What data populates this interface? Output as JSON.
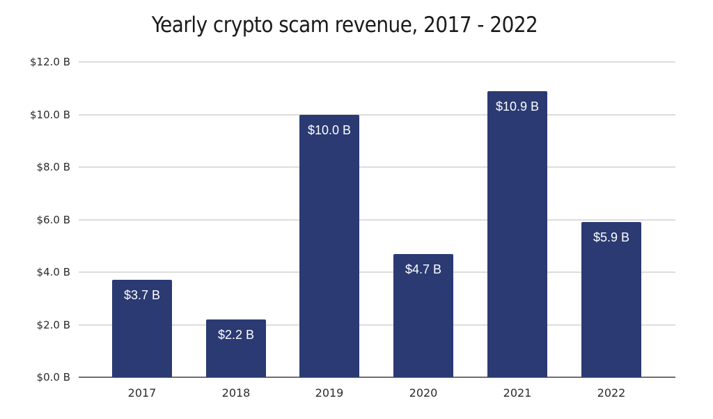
{
  "chart_data": {
    "type": "bar",
    "title": "Yearly crypto scam revenue, 2017 - 2022",
    "xlabel": "",
    "ylabel": "",
    "categories": [
      "2017",
      "2018",
      "2019",
      "2020",
      "2021",
      "2022"
    ],
    "values": [
      3.7,
      2.2,
      10.0,
      4.7,
      10.9,
      5.9
    ],
    "data_labels": [
      "$3.7 B",
      "$2.2 B",
      "$10.0 B",
      "$4.7 B",
      "$10.9 B",
      "$5.9 B"
    ],
    "unit": "USD billions",
    "ylim": [
      0,
      12
    ],
    "yticks": [
      0,
      2,
      4,
      6,
      8,
      10,
      12
    ],
    "ytick_labels": [
      "$0.0 B",
      "$2.0 B",
      "$4.0 B",
      "$6.0 B",
      "$8.0 B",
      "$10.0 B",
      "$12.0 B"
    ],
    "grid": true,
    "legend": null,
    "colors": {
      "bar": "#2B3A72",
      "bar_label": "#FFFFFF",
      "grid": "#DCDCDC",
      "axis": "#6E6E6E"
    }
  }
}
